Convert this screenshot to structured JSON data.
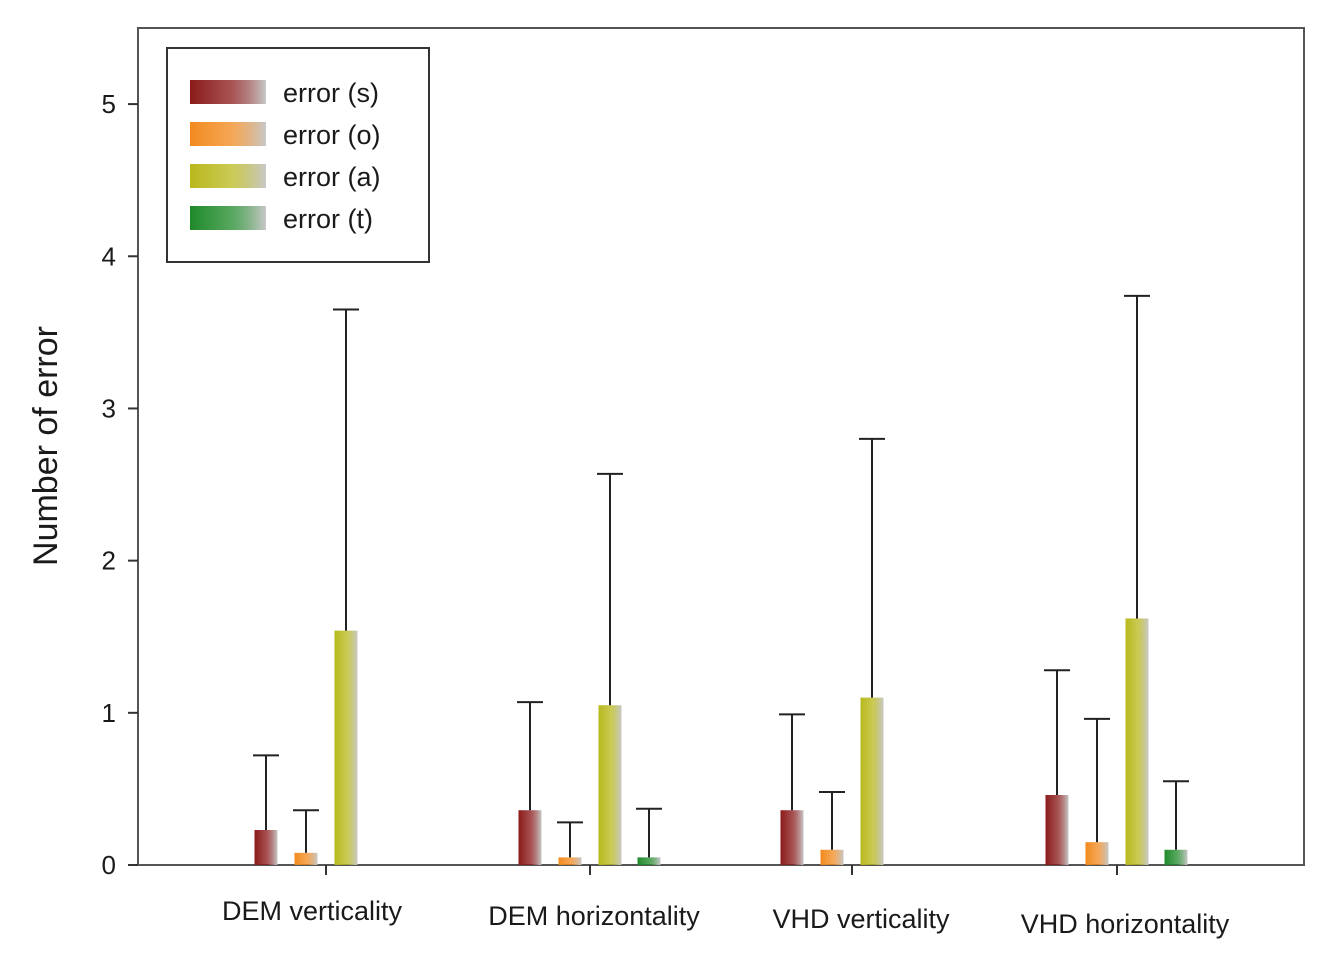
{
  "chart_data": {
    "type": "bar",
    "title": "",
    "xlabel": "",
    "ylabel": "Number of error",
    "ylim": [
      0,
      5.5
    ],
    "yticks": [
      0,
      1,
      2,
      3,
      4,
      5
    ],
    "categories": [
      "DEM verticality",
      "DEM horizontality",
      "VHD verticality",
      "VHD horizontality"
    ],
    "series": [
      {
        "name": "error (s)",
        "color": "#8b1a1a",
        "values": [
          0.23,
          0.36,
          0.36,
          0.46
        ],
        "errors": [
          0.49,
          0.71,
          0.63,
          0.82
        ]
      },
      {
        "name": "error (o)",
        "color": "#f28a1e",
        "values": [
          0.08,
          0.05,
          0.1,
          0.15
        ],
        "errors": [
          0.28,
          0.23,
          0.38,
          0.81
        ]
      },
      {
        "name": "error (a)",
        "color": "#b9b81c",
        "values": [
          1.54,
          1.05,
          1.1,
          1.62
        ],
        "errors": [
          2.11,
          1.52,
          1.7,
          2.12
        ]
      },
      {
        "name": "error (t)",
        "color": "#1f8a2a",
        "values": [
          0,
          0.05,
          0,
          0.1
        ],
        "errors": [
          0,
          0.32,
          0,
          0.45
        ]
      }
    ],
    "legend": "top-left",
    "grid": false
  }
}
